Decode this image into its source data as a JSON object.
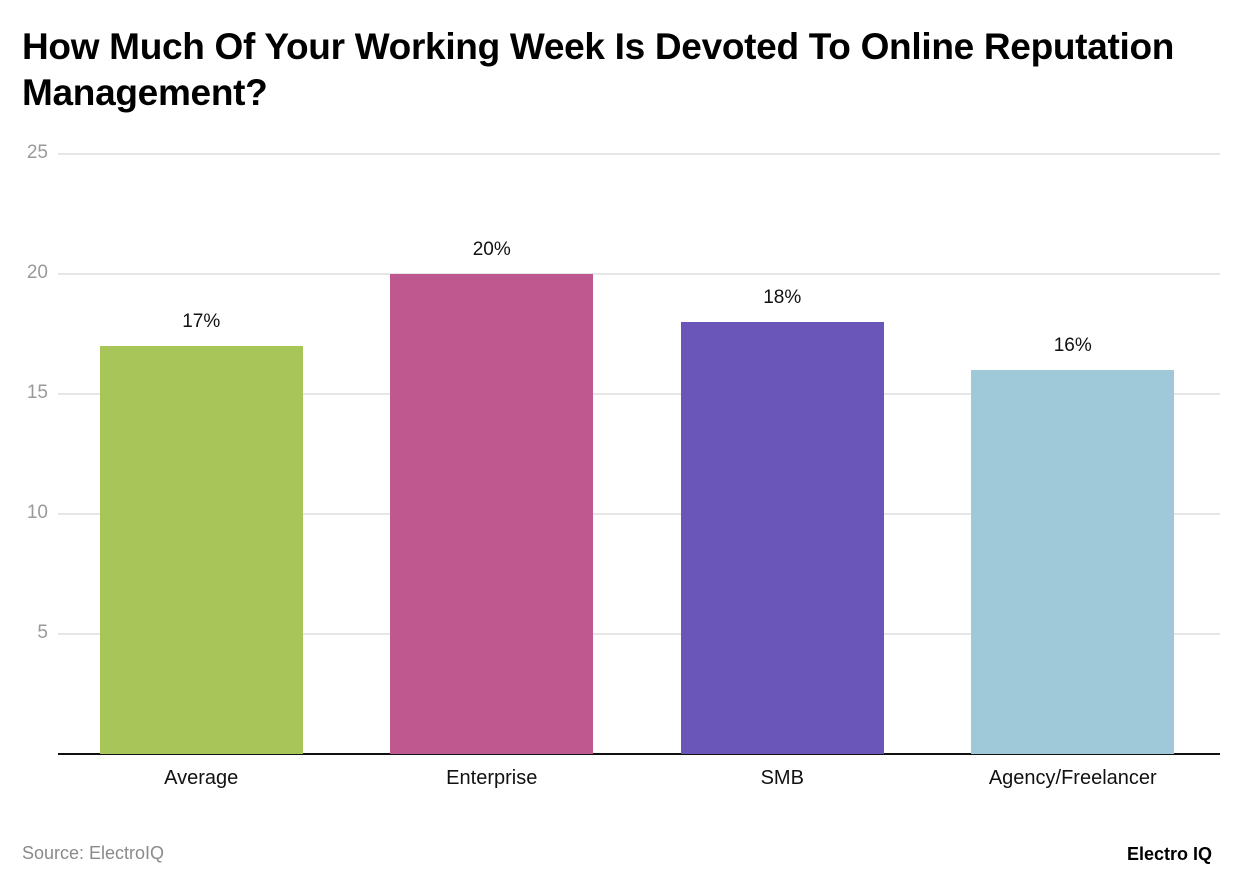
{
  "title": "How Much Of Your Working Week Is Devoted To Online Reputation Management?",
  "footer": {
    "source": "Source: ElectroIQ",
    "brand": "Electro IQ"
  },
  "chart_data": {
    "type": "bar",
    "title": "How Much Of Your Working Week Is Devoted To Online Reputation Management?",
    "xlabel": "",
    "ylabel": "",
    "categories": [
      "Average",
      "Enterprise",
      "SMB",
      "Agency/Freelancer"
    ],
    "values": [
      17,
      20,
      18,
      16
    ],
    "value_labels": [
      "17%",
      "20%",
      "18%",
      "16%"
    ],
    "colors": [
      "#a8c55a",
      "#bf588e",
      "#6a55b8",
      "#9fc8d8"
    ],
    "ylim": [
      0,
      25
    ],
    "yticks": [
      5,
      10,
      15,
      20,
      25
    ],
    "ytick_labels": [
      "5",
      "10",
      "15",
      "20",
      "25"
    ],
    "grid": true,
    "legend": null
  }
}
